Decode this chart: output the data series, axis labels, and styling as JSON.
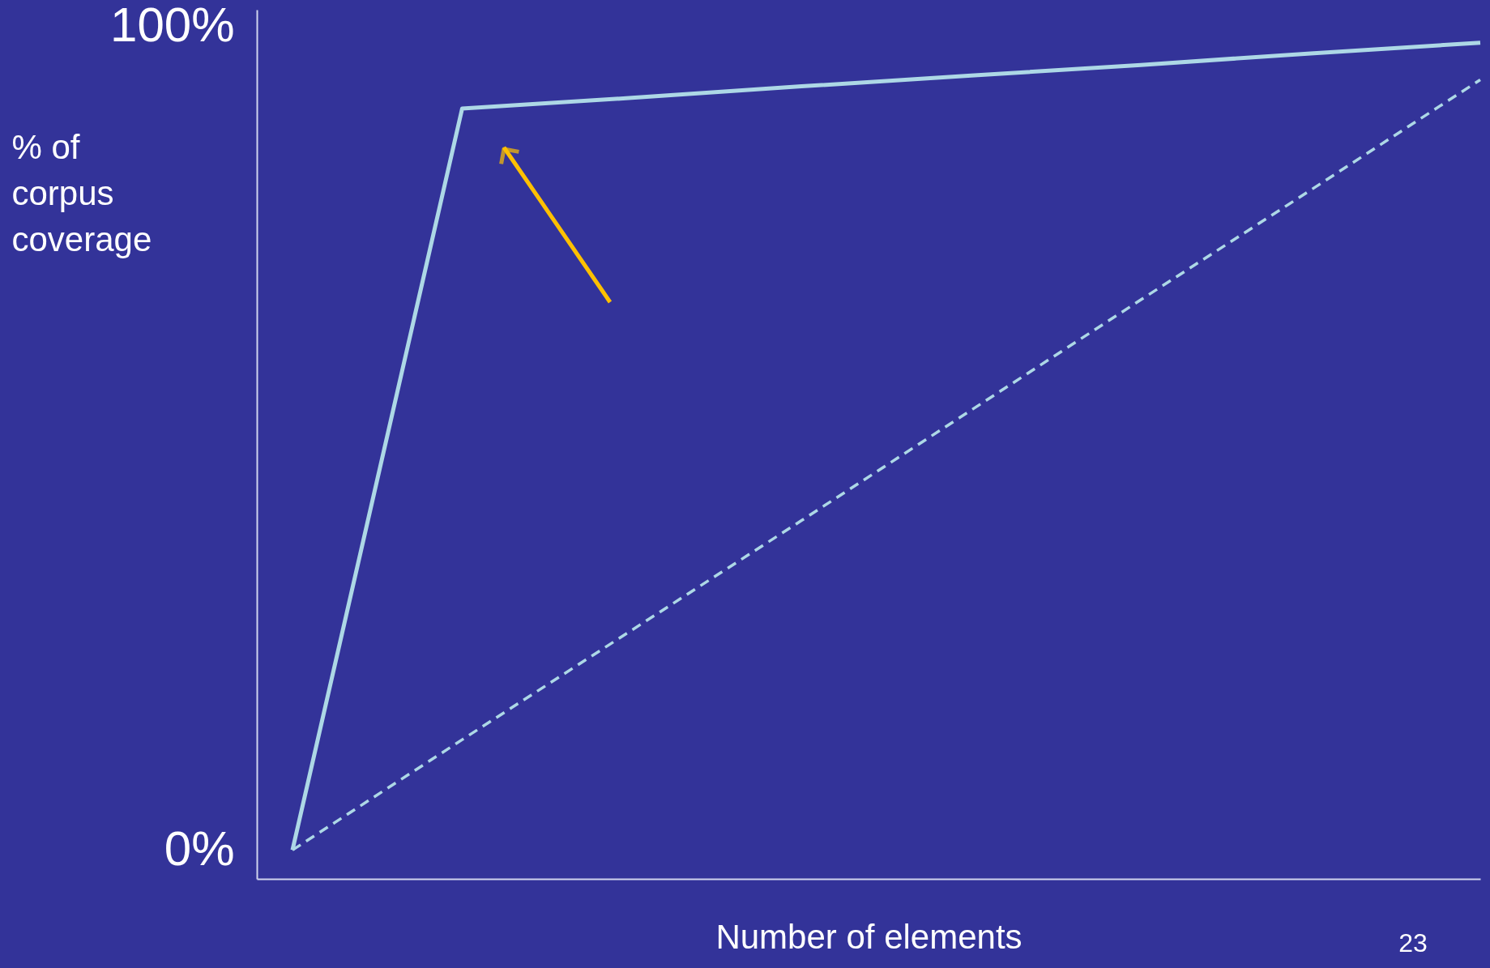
{
  "chart_data": {
    "type": "line",
    "xlabel": "Number of elements",
    "ylabel": "% of\ncorpus\ncoverage",
    "categories": [
      null,
      null,
      null,
      null,
      null,
      null,
      null,
      null
    ],
    "series": [
      {
        "color": "#add8e6",
        "line_style": "solid",
        "values": [
          0,
          90,
          91.3,
          92.7,
          94,
          95.3,
          96.7,
          98
        ]
      },
      {
        "color": "#add8e6",
        "line_style": "dashed",
        "values": [
          0,
          13.4,
          26.7,
          40,
          53.4,
          66.8,
          80.1,
          93.5
        ]
      }
    ],
    "ylim": [
      -3.5,
      102
    ],
    "yticks": [
      {
        "value": 0,
        "label": "0%"
      },
      {
        "value": 100,
        "label": "100%"
      }
    ],
    "tick_labels": "y",
    "annotations": [
      "23"
    ]
  }
}
